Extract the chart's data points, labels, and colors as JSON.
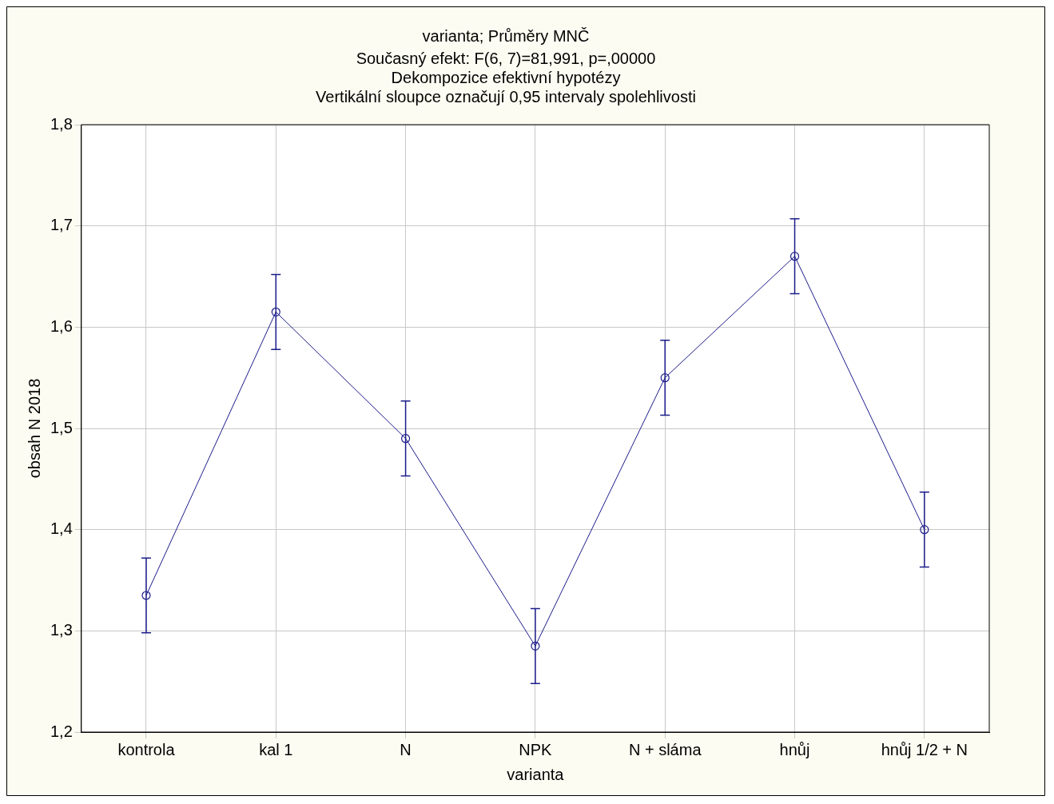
{
  "chart_data": {
    "type": "line",
    "title": "varianta; Průměry MNČ",
    "subtitle": "Současný efekt: F(6, 7)=81,991, p=,00000\nDekompozice efektivní hypotézy\nVertikální sloupce označují 0,95 intervaly spolehlivosti",
    "xlabel": "varianta",
    "ylabel": "obsah N 2018",
    "categories": [
      "kontrola",
      "kal 1",
      "N",
      "NPK",
      "N + sláma",
      "hnůj",
      "hnůj 1/2 + N"
    ],
    "series": [
      {
        "color": "#1c1c8a",
        "values": [
          1.335,
          1.615,
          1.49,
          1.285,
          1.55,
          1.67,
          1.4
        ],
        "errors": [
          0.037,
          0.037,
          0.037,
          0.037,
          0.037,
          0.037,
          0.037
        ]
      }
    ],
    "ylim": [
      1.2,
      1.8
    ],
    "yticks": [
      {
        "value": 1.2,
        "label": "1,2"
      },
      {
        "value": 1.3,
        "label": "1,3"
      },
      {
        "value": 1.4,
        "label": "1,4"
      },
      {
        "value": 1.5,
        "label": "1,5"
      },
      {
        "value": 1.6,
        "label": "1,6"
      },
      {
        "value": 1.7,
        "label": "1,7"
      },
      {
        "value": 1.8,
        "label": "1,8"
      }
    ],
    "grid": true,
    "legend": false,
    "marker": "circle",
    "line_style": "solid"
  }
}
